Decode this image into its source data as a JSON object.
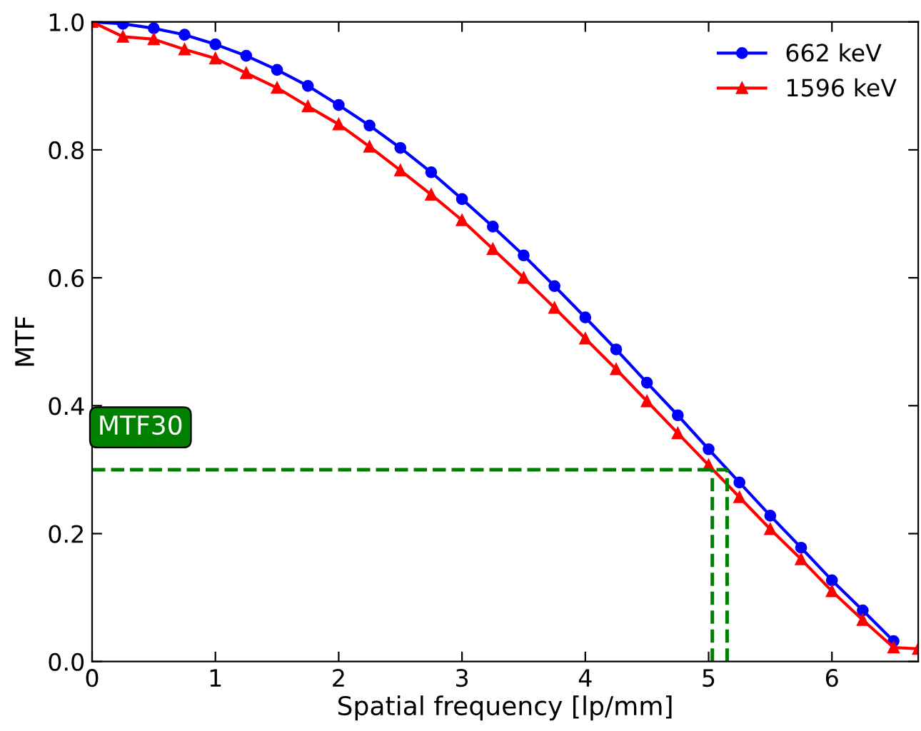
{
  "chart_data": {
    "type": "line",
    "xlabel": "Spatial frequency [lp/mm]",
    "ylabel": "MTF",
    "xlim": [
      0,
      6.7
    ],
    "xticks": [
      0,
      1,
      2,
      3,
      4,
      5,
      6
    ],
    "ylim": [
      0,
      1.0
    ],
    "yticks": [
      {
        "value": 0,
        "label": "0.0"
      },
      {
        "value": 0.2,
        "label": "0.2"
      },
      {
        "value": 0.4,
        "label": "0.4"
      },
      {
        "value": 0.6,
        "label": "0.6"
      },
      {
        "value": 0.8,
        "label": "0.8"
      },
      {
        "value": 1.0,
        "label": "1.0"
      }
    ],
    "legend": "top right",
    "grid": false,
    "annotations": [
      "MTF30"
    ],
    "series": [
      {
        "name": "662 keV",
        "color": "#0000ff",
        "marker": "circle",
        "x": [
          0,
          0.25,
          0.5,
          0.75,
          1,
          1.25,
          1.5,
          1.75,
          2,
          2.25,
          2.5,
          2.75,
          3,
          3.25,
          3.5,
          3.75,
          4,
          4.25,
          4.5,
          4.75,
          5,
          5.25,
          5.5,
          5.75,
          6,
          6.25,
          6.5
        ],
        "values": [
          1.0,
          0.997,
          0.99,
          0.98,
          0.965,
          0.947,
          0.925,
          0.9,
          0.87,
          0.838,
          0.803,
          0.765,
          0.723,
          0.68,
          0.635,
          0.587,
          0.538,
          0.488,
          0.436,
          0.385,
          0.332,
          0.28,
          0.228,
          0.178,
          0.127,
          0.08,
          0.032
        ]
      },
      {
        "name": "1596 keV",
        "color": "#ff0000",
        "marker": "triangle",
        "x": [
          0,
          0.25,
          0.5,
          0.75,
          1,
          1.25,
          1.5,
          1.75,
          2,
          2.25,
          2.5,
          2.75,
          3,
          3.25,
          3.5,
          3.75,
          4,
          4.25,
          4.5,
          4.75,
          5,
          5.25,
          5.5,
          5.75,
          6,
          6.25,
          6.5,
          6.7
        ],
        "values": [
          1.0,
          0.977,
          0.973,
          0.957,
          0.943,
          0.92,
          0.897,
          0.868,
          0.84,
          0.805,
          0.768,
          0.73,
          0.69,
          0.645,
          0.6,
          0.553,
          0.505,
          0.457,
          0.407,
          0.357,
          0.307,
          0.257,
          0.207,
          0.16,
          0.11,
          0.065,
          0.022,
          0.02
        ]
      },
      {
        "color": "#008000",
        "marker": "none",
        "line_style": "dashed",
        "x": [
          0,
          5.15
        ],
        "values": [
          0.3,
          0.3
        ]
      },
      {
        "color": "#008000",
        "marker": "none",
        "line_style": "dashed",
        "x": [
          5.03,
          5.03
        ],
        "values": [
          0,
          0.3
        ]
      },
      {
        "color": "#008000",
        "marker": "none",
        "line_style": "dashed",
        "x": [
          5.15,
          5.15
        ],
        "values": [
          0,
          0.3
        ]
      }
    ]
  }
}
